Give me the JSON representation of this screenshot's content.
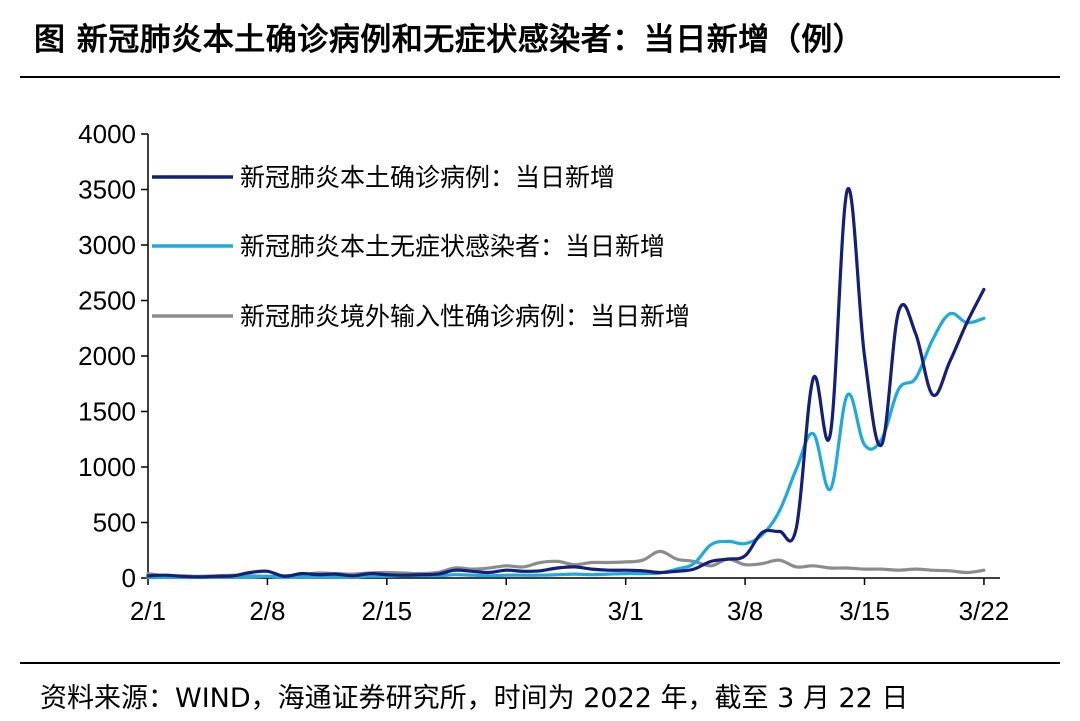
{
  "title": "图 新冠肺炎本土确诊病例和无症状感染者：当日新增（例）",
  "source": "资料来源：WIND，海通证券研究所，时间为 2022 年，截至 3 月 22 日",
  "chart_data": {
    "type": "line",
    "xlabel": "",
    "ylabel": "",
    "ylim": [
      0,
      4000
    ],
    "yticks": [
      "0",
      "500",
      "1000",
      "1500",
      "2000",
      "2500",
      "3000",
      "3500",
      "4000"
    ],
    "xticks": [
      "2/1",
      "2/8",
      "2/15",
      "2/22",
      "3/1",
      "3/8",
      "3/15",
      "3/22"
    ],
    "x": [
      "2/1",
      "2/2",
      "2/3",
      "2/4",
      "2/5",
      "2/6",
      "2/7",
      "2/8",
      "2/9",
      "2/10",
      "2/11",
      "2/12",
      "2/13",
      "2/14",
      "2/15",
      "2/16",
      "2/17",
      "2/18",
      "2/19",
      "2/20",
      "2/21",
      "2/22",
      "2/23",
      "2/24",
      "2/25",
      "2/26",
      "2/27",
      "2/28",
      "3/1",
      "3/2",
      "3/3",
      "3/4",
      "3/5",
      "3/6",
      "3/7",
      "3/8",
      "3/9",
      "3/10",
      "3/11",
      "3/12",
      "3/13",
      "3/14",
      "3/15",
      "3/16",
      "3/17",
      "3/18",
      "3/19",
      "3/20",
      "3/21",
      "3/22"
    ],
    "legend_position": "top-left",
    "grid": false,
    "series": [
      {
        "name": "新冠肺炎本土确诊病例：当日新增",
        "color": "#141F7A",
        "values": [
          20,
          25,
          15,
          10,
          15,
          20,
          50,
          60,
          15,
          40,
          30,
          35,
          20,
          40,
          30,
          25,
          30,
          35,
          70,
          60,
          50,
          70,
          60,
          65,
          90,
          100,
          80,
          70,
          70,
          65,
          50,
          60,
          80,
          150,
          170,
          200,
          410,
          420,
          450,
          1800,
          1300,
          3500,
          2000,
          1200,
          2400,
          2200,
          1650,
          1950,
          2300,
          2600
        ]
      },
      {
        "name": "新冠肺炎本土无症状感染者：当日新增",
        "color": "#1FA9E1",
        "values": [
          5,
          5,
          5,
          5,
          10,
          10,
          10,
          15,
          5,
          10,
          10,
          10,
          10,
          15,
          15,
          20,
          20,
          20,
          30,
          25,
          20,
          25,
          25,
          25,
          30,
          35,
          30,
          35,
          40,
          40,
          45,
          80,
          130,
          300,
          330,
          310,
          390,
          600,
          980,
          1300,
          800,
          1650,
          1200,
          1250,
          1700,
          1800,
          2150,
          2380,
          2300,
          2340
        ]
      },
      {
        "name": "新冠肺炎境外输入性确诊病例：当日新增",
        "color": "#8C8C8C",
        "values": [
          40,
          20,
          20,
          15,
          20,
          25,
          20,
          15,
          20,
          30,
          45,
          40,
          35,
          45,
          50,
          45,
          40,
          50,
          90,
          80,
          90,
          110,
          100,
          140,
          150,
          120,
          140,
          140,
          145,
          160,
          240,
          170,
          150,
          110,
          170,
          120,
          130,
          160,
          100,
          110,
          90,
          90,
          80,
          80,
          70,
          80,
          70,
          65,
          50,
          70
        ]
      }
    ]
  }
}
